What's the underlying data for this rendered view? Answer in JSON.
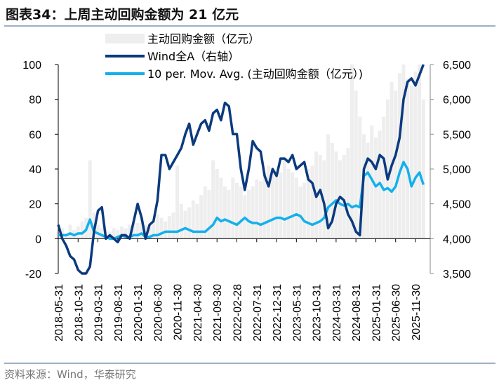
{
  "title": "图表34：上周主动回购金额为 21 亿元",
  "source": "资料来源：Wind，华泰研究",
  "chart_data": {
    "type": "bar+line",
    "title": "图表34：上周主动回购金额为 21 亿元",
    "legend": [
      "主动回购金额（亿元）",
      "Wind全A（右轴）",
      "10 per. Mov. Avg. (主动回购金额（亿元）)"
    ],
    "legend_placement": "top-center",
    "colors": {
      "bars": "#eeeeee",
      "wind": "#0b3a7e",
      "ma": "#14b0ec"
    },
    "x_tick_labels": [
      "2018-05-31",
      "2018-10-31",
      "2019-03-31",
      "2019-08-31",
      "2020-01-31",
      "2020-06-30",
      "2020-11-30",
      "2021-04-30",
      "2021-09-30",
      "2022-02-28",
      "2022-07-31",
      "2022-12-31",
      "2023-05-31",
      "2023-10-31",
      "2024-03-31",
      "2024-08-31",
      "2025-01-31",
      "2025-06-30",
      "2025-11-30"
    ],
    "x_start": "2018-05",
    "x_end": "2026-01",
    "left_axis": {
      "ylim": [
        -20,
        100
      ],
      "ticks": [
        -20,
        0,
        20,
        40,
        60,
        80,
        100
      ]
    },
    "right_axis": {
      "ylim": [
        3500,
        6500
      ],
      "ticks": [
        "3,500",
        "4,000",
        "4,500",
        "5,000",
        "5,500",
        "6,000",
        "6,500"
      ]
    },
    "grid": false,
    "series": [
      {
        "name": "主动回购金额（亿元）",
        "type": "bar",
        "axis": "left",
        "values": [
          4,
          6,
          3,
          8,
          5,
          7,
          10,
          12,
          45,
          15,
          8,
          6,
          5,
          4,
          6,
          5,
          7,
          6,
          8,
          10,
          9,
          12,
          8,
          7,
          10,
          14,
          12,
          10,
          13,
          15,
          42,
          20,
          16,
          18,
          22,
          20,
          25,
          30,
          28,
          45,
          40,
          35,
          30,
          28,
          35,
          32,
          30,
          25,
          28,
          30,
          34,
          33,
          38,
          42,
          40,
          36,
          38,
          45,
          40,
          38,
          35,
          30,
          32,
          40,
          42,
          50,
          48,
          45,
          60,
          55,
          50,
          45,
          48,
          52,
          100,
          85,
          70,
          60,
          55,
          65,
          58,
          62,
          70,
          80,
          90,
          85,
          95,
          100,
          92,
          88,
          96,
          100,
          80
        ]
      },
      {
        "name": "Wind全A（右轴）",
        "type": "line",
        "axis": "right",
        "values": [
          4200,
          4000,
          3900,
          3750,
          3700,
          3550,
          3500,
          3400,
          3600,
          4100,
          4400,
          4450,
          4000,
          4050,
          4000,
          3950,
          4050,
          4050,
          4000,
          4250,
          4500,
          4300,
          4000,
          4200,
          4250,
          4550,
          5200,
          5200,
          5000,
          5100,
          5200,
          5300,
          5500,
          5650,
          5350,
          5500,
          5650,
          5700,
          5550,
          5800,
          5850,
          5700,
          5950,
          5900,
          5500,
          5500,
          5000,
          4700,
          5000,
          5400,
          5300,
          5250,
          4900,
          4750,
          5000,
          4900,
          5150,
          5150,
          5100,
          5200,
          5000,
          5050,
          5100,
          4850,
          4800,
          4600,
          4700,
          4500,
          4150,
          4250,
          4500,
          4600,
          4550,
          4350,
          4250,
          4100,
          4050,
          5000,
          5150,
          5100,
          5000,
          5200,
          5150,
          4850,
          5050,
          5200,
          5450,
          6000,
          6250,
          6300,
          6200,
          6350,
          6550
        ]
      },
      {
        "name": "10 per. Mov. Avg. (主动回购金额（亿元）)",
        "type": "line",
        "axis": "left",
        "values": [
          2,
          2,
          2,
          3,
          2,
          3,
          3,
          5,
          11,
          4,
          3,
          2,
          1,
          0,
          0,
          1,
          2,
          1,
          1,
          2,
          2,
          3,
          1,
          1,
          2,
          2,
          3,
          4,
          4,
          4,
          4,
          5,
          6,
          5,
          4,
          4,
          4,
          4,
          6,
          8,
          12,
          10,
          11,
          10,
          9,
          8,
          10,
          12,
          10,
          9,
          9,
          8,
          9,
          10,
          11,
          12,
          12,
          11,
          12,
          13,
          14,
          13,
          10,
          9,
          8,
          9,
          10,
          12,
          18,
          20,
          22,
          20,
          19,
          20,
          18,
          19,
          18,
          36,
          38,
          34,
          30,
          32,
          28,
          29,
          27,
          30,
          38,
          44,
          40,
          30,
          35,
          38,
          31
        ]
      }
    ]
  }
}
